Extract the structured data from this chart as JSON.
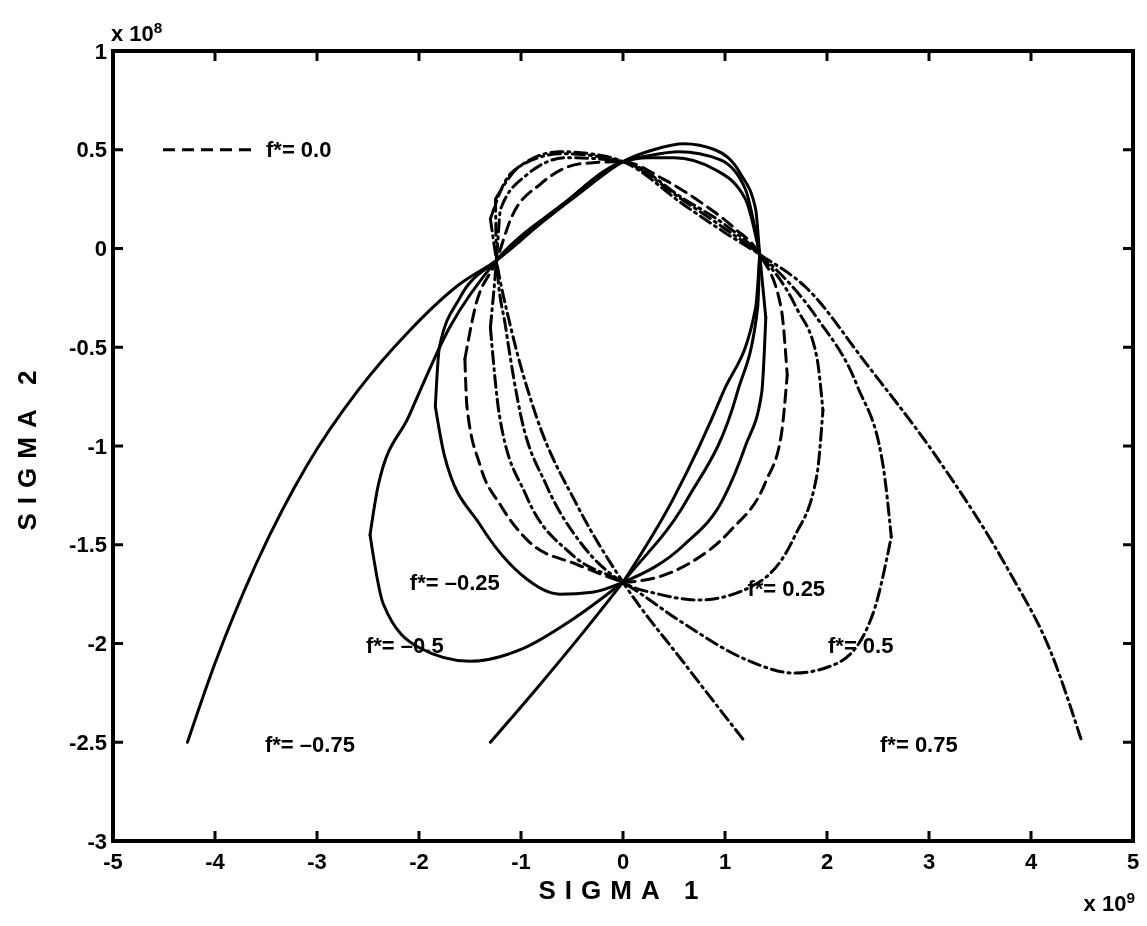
{
  "chart_data": {
    "type": "line",
    "xlabel": "SIGMA 1",
    "ylabel": "SIGMA 2",
    "xlim": [
      -5,
      5
    ],
    "ylim": [
      -3,
      1
    ],
    "xticks": [
      -5,
      -4,
      -3,
      -2,
      -1,
      0,
      1,
      2,
      3,
      4,
      5
    ],
    "yticks": [
      -3,
      -2.5,
      -2,
      -1.5,
      -1,
      -0.5,
      0,
      0.5,
      1
    ],
    "grid": false,
    "legend": "top left",
    "marker": "none",
    "annotations": [
      "x 10$^{8}$",
      "x 10$^{9}$",
      "f*= –0.75",
      "f*= –0.5",
      "f*= –0.25",
      "f*= 0.25",
      "f*= 0.5",
      "f*= 0.75"
    ],
    "series": [
      {
        "color": "#000000",
        "line_style": "solid",
        "x": [
          -4.27,
          -4.0,
          -3.6,
          -3.1,
          -2.6,
          -2.1,
          -1.6,
          -1.24,
          -0.8,
          -0.4,
          0,
          0.3,
          0.6,
          0.9,
          1.15,
          1.3,
          1.34,
          1.4
        ],
        "values": [
          -2.5,
          -2.1,
          -1.6,
          -1.1,
          -0.72,
          -0.42,
          -0.18,
          -0.06,
          0.13,
          0.29,
          0.44,
          0.5,
          0.53,
          0.5,
          0.38,
          0.2,
          -0.03,
          -0.35
        ]
      },
      {
        "color": "#000000",
        "line_style": "solid",
        "x": [
          -1.3,
          -0.85,
          -0.4,
          0,
          0.63,
          1.12,
          1.32,
          1.34
        ],
        "values": [
          -2.5,
          -2.23,
          -1.95,
          -1.69,
          -1.27,
          -0.73,
          -0.3,
          -0.03
        ]
      },
      {
        "color": "#000000",
        "line_style": "solid",
        "x": [
          -2.48,
          -2.35,
          -2.0,
          -1.5,
          -1.0,
          -0.5,
          0
        ],
        "values": [
          -1.45,
          -1.8,
          -2.02,
          -2.09,
          -2.03,
          -1.88,
          -1.69
        ]
      },
      {
        "color": "#000000",
        "line_style": "solid",
        "x": [
          -2.48,
          -2.4,
          -2.1,
          -1.7,
          -1.24,
          -0.6,
          0,
          0.25,
          0.55,
          0.95,
          1.2,
          1.34
        ],
        "values": [
          -1.45,
          -1.2,
          -0.85,
          -0.4,
          -0.06,
          0.22,
          0.44,
          0.47,
          0.49,
          0.45,
          0.3,
          -0.03
        ]
      },
      {
        "color": "#000000",
        "line_style": "solid",
        "x": [
          -1.84,
          -1.75,
          -1.4,
          -1.0,
          -0.62,
          -0.3,
          0,
          0.6,
          0.98,
          1.2,
          1.36,
          1.4
        ],
        "values": [
          -0.8,
          -1.05,
          -1.4,
          -1.65,
          -1.75,
          -1.74,
          -1.69,
          -1.5,
          -1.27,
          -1.0,
          -0.73,
          -0.35
        ]
      },
      {
        "color": "#000000",
        "line_style": "solid",
        "x": [
          -1.84,
          -1.8,
          -1.6,
          -1.24,
          -0.6,
          0,
          0.25,
          0.5,
          0.9,
          1.2,
          1.34
        ],
        "values": [
          -0.8,
          -0.5,
          -0.25,
          -0.06,
          0.22,
          0.44,
          0.46,
          0.46,
          0.4,
          0.25,
          -0.03
        ]
      },
      {
        "color": "#000000",
        "line_style": "solid",
        "x": [
          0,
          0.49,
          0.98,
          1.3,
          1.34
        ],
        "values": [
          -1.69,
          -1.27,
          -0.73,
          -0.3,
          -0.03
        ]
      },
      {
        "name": "f*= 0.0",
        "color": "#000000",
        "line_style": "dashed",
        "x": [
          -1.55,
          -1.45,
          -1.24,
          -1.1,
          -0.8,
          -0.4,
          0,
          0.4,
          0.8,
          1.1,
          1.34,
          1.55,
          1.61
        ],
        "values": [
          -0.56,
          -0.3,
          -0.06,
          0.15,
          0.33,
          0.43,
          0.44,
          0.35,
          0.22,
          0.1,
          -0.03,
          -0.3,
          -0.64
        ]
      },
      {
        "color": "#000000",
        "line_style": "dashed",
        "x": [
          -1.55,
          -1.53,
          -1.4,
          -1.2,
          -0.91,
          -0.45,
          0
        ],
        "values": [
          -0.56,
          -0.8,
          -1.1,
          -1.3,
          -1.49,
          -1.6,
          -1.69
        ]
      },
      {
        "color": "#000000",
        "line_style": "dashed",
        "x": [
          0,
          0.3,
          0.63,
          1.05,
          1.4,
          1.55,
          1.61
        ],
        "values": [
          -1.69,
          -1.67,
          -1.6,
          -1.43,
          -1.18,
          -0.95,
          -0.64
        ]
      },
      {
        "color": "#000000",
        "line_style": "dashdot",
        "x": [
          -1.3,
          -1.24,
          -1.2,
          -0.95,
          -0.55,
          0,
          0.6,
          1.0,
          1.34,
          1.7,
          1.9,
          1.96
        ],
        "values": [
          -0.4,
          -0.06,
          0.2,
          0.37,
          0.46,
          0.44,
          0.25,
          0.12,
          -0.03,
          -0.3,
          -0.55,
          -0.82
        ]
      },
      {
        "color": "#000000",
        "line_style": "dashdot",
        "x": [
          -1.3,
          -1.21,
          -0.95,
          -0.5,
          0,
          0.6,
          1.2,
          1.68,
          2.1,
          2.45,
          2.63
        ],
        "values": [
          -0.4,
          -0.85,
          -1.25,
          -1.55,
          -1.69,
          -1.9,
          -2.08,
          -2.15,
          -2.1,
          -1.85,
          -1.46
        ]
      },
      {
        "color": "#000000",
        "line_style": "dashdot",
        "x": [
          -1.25,
          -1.0,
          -0.6,
          0,
          0.6,
          1.0,
          1.34,
          1.9,
          2.3,
          2.55,
          2.63
        ],
        "values": [
          0.25,
          0.42,
          0.48,
          0.44,
          0.24,
          0.1,
          -0.03,
          -0.35,
          -0.7,
          -1.1,
          -1.46
        ]
      },
      {
        "color": "#000000",
        "line_style": "dashdot",
        "x": [
          -1.25,
          -1.24,
          -1.15,
          -1.0,
          -0.75,
          -0.4,
          0,
          0.35,
          0.74,
          1.3,
          1.68,
          1.9,
          1.96
        ],
        "values": [
          0.25,
          -0.06,
          -0.4,
          -0.85,
          -1.2,
          -1.5,
          -1.69,
          -1.75,
          -1.78,
          -1.7,
          -1.46,
          -1.15,
          -0.82
        ]
      },
      {
        "color": "#000000",
        "line_style": "dashdot",
        "x": [
          -1.3,
          -1.24,
          -1.1,
          -0.85,
          -0.45,
          0,
          0.6,
          1.2
        ],
        "values": [
          0.15,
          -0.06,
          -0.4,
          -0.85,
          -1.3,
          -1.69,
          -2.1,
          -2.5
        ]
      },
      {
        "color": "#000000",
        "line_style": "dashdot",
        "x": [
          -1.3,
          -1.1,
          -0.62,
          -0.2,
          0,
          0.6,
          1.0,
          1.34,
          1.8,
          2.38,
          3.08,
          3.78,
          4.2,
          4.5
        ],
        "values": [
          0.15,
          0.38,
          0.49,
          0.47,
          0.44,
          0.22,
          0.08,
          -0.03,
          -0.2,
          -0.58,
          -1.06,
          -1.63,
          -2.05,
          -2.5
        ]
      }
    ]
  }
}
